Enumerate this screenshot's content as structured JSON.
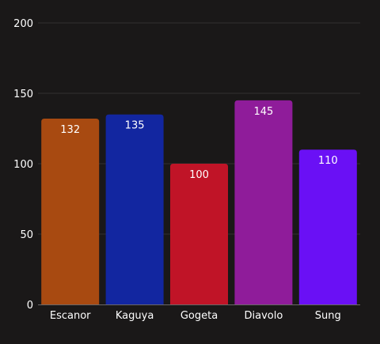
{
  "chart_data": {
    "type": "bar",
    "title": "",
    "xlabel": "",
    "ylabel": "",
    "categories": [
      "Escanor",
      "Kaguya",
      "Gogeta",
      "Diavolo",
      "Sung"
    ],
    "values": [
      132,
      135,
      100,
      145,
      110
    ],
    "colors": [
      "#a84a11",
      "#1226a0",
      "#c01427",
      "#8f1c9a",
      "#6a10f5"
    ],
    "ylim": [
      0,
      200
    ],
    "yticks": [
      0,
      50,
      100,
      150,
      200
    ],
    "grid": true,
    "data_labels": true,
    "legend": "none",
    "background": "#1a1818"
  }
}
